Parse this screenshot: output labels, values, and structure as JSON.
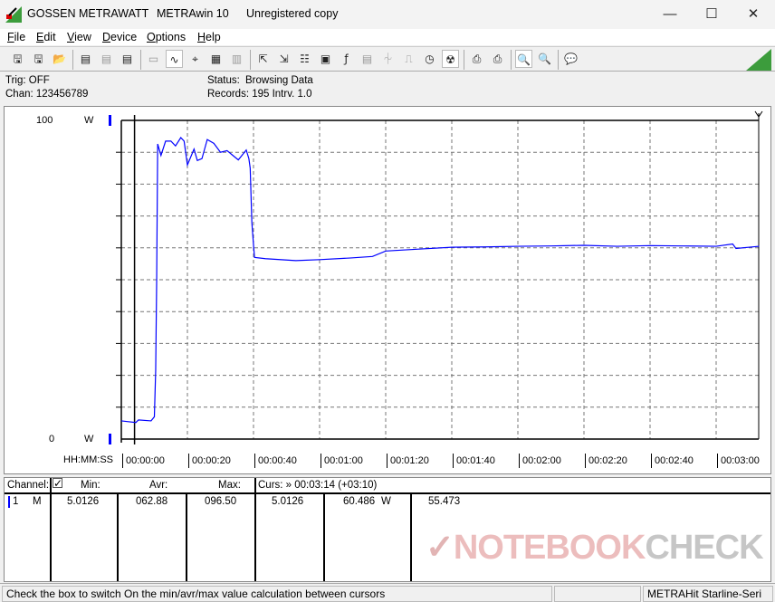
{
  "titlebar": {
    "brand": "GOSSEN METRAWATT",
    "app": "METRAwin 10",
    "license": "Unregistered copy"
  },
  "menu": [
    "File",
    "Edit",
    "View",
    "Device",
    "Options",
    "Help"
  ],
  "toolbar": [
    {
      "icon": "save-as-icon",
      "g": "🖫"
    },
    {
      "icon": "save-icon",
      "g": "🖫"
    },
    {
      "icon": "open-folder-icon",
      "g": "📂"
    },
    {
      "sep": true
    },
    {
      "icon": "device-read-icon",
      "g": "▤"
    },
    {
      "icon": "device-transfer-icon",
      "g": "▤",
      "dis": true
    },
    {
      "icon": "device-memory-icon",
      "g": "▤"
    },
    {
      "sep": true
    },
    {
      "icon": "display-icon",
      "g": "▭",
      "dis": true
    },
    {
      "icon": "waveform-view-icon",
      "g": "∿",
      "on": true
    },
    {
      "icon": "crosshair-icon",
      "g": "⌖"
    },
    {
      "icon": "table-view-icon",
      "g": "▦"
    },
    {
      "icon": "histogram-icon",
      "g": "▥",
      "dis": true
    },
    {
      "sep": true
    },
    {
      "icon": "export-icon",
      "g": "⇱"
    },
    {
      "icon": "import-icon",
      "g": "⇲"
    },
    {
      "icon": "data-list-icon",
      "g": "☷"
    },
    {
      "icon": "monitor-icon",
      "g": "▣"
    },
    {
      "icon": "function-icon",
      "g": "ƒ"
    },
    {
      "icon": "device-settings-icon",
      "g": "▤",
      "dis": true
    },
    {
      "icon": "signal-icon",
      "g": "⏆",
      "dis": true
    },
    {
      "icon": "pulse-icon",
      "g": "⎍",
      "dis": true
    },
    {
      "icon": "clock-icon",
      "g": "◷"
    },
    {
      "icon": "trigger-icon",
      "g": "☢",
      "on": true
    },
    {
      "sep": true
    },
    {
      "icon": "print-preview-icon",
      "g": "⎙"
    },
    {
      "icon": "print-icon",
      "g": "⎙"
    },
    {
      "sep": true
    },
    {
      "icon": "zoom-waveform-icon",
      "g": "🔍",
      "on": true
    },
    {
      "icon": "zoom-icon",
      "g": "🔍"
    },
    {
      "sep": true
    },
    {
      "icon": "comment-icon",
      "g": "💬"
    }
  ],
  "info": {
    "trig": "Trig: OFF",
    "chan": "Chan:  123456789",
    "status_label": "Status:",
    "status": "Browsing Data",
    "records": "Records: 195  Intrv. 1.0"
  },
  "chart_data": {
    "type": "line",
    "ylim": [
      0,
      100
    ],
    "y_tick_labels": [
      "100",
      "0"
    ],
    "y_unit": "W",
    "xlabel": "HH:MM:SS",
    "x_tick_labels": [
      "00:00:00",
      "00:00:20",
      "00:00:40",
      "00:01:00",
      "00:01:20",
      "00:01:40",
      "00:02:00",
      "00:02:20",
      "00:02:40",
      "00:03:00"
    ],
    "xlim_seconds": [
      0,
      193
    ],
    "grid": true,
    "line_color": "#0000ff",
    "cursor_seconds": 4,
    "series": [
      {
        "x": [
          0,
          4.4,
          5.2,
          9,
          10,
          10.4,
          10.7,
          11,
          12,
          13.4,
          15,
          16.4,
          18,
          19,
          20,
          22,
          23,
          24.4,
          26,
          28,
          30,
          32,
          35.4,
          37.8,
          38.6,
          39,
          39.5,
          40,
          40.3,
          43.6,
          52.8,
          60,
          69,
          76,
          80,
          90,
          100,
          110,
          120,
          130,
          140,
          150,
          160,
          170,
          180,
          185,
          186,
          193
        ],
        "y": [
          5.7,
          5.2,
          6,
          5.7,
          7,
          21.6,
          50,
          92.6,
          89,
          93.5,
          93.5,
          92,
          94.6,
          93.5,
          86,
          91,
          87.4,
          88,
          94,
          92.8,
          90,
          90.5,
          87.6,
          90.7,
          88,
          85,
          68,
          61,
          57,
          56.6,
          56,
          56.3,
          56.8,
          57.3,
          59,
          59.6,
          60.2,
          60.3,
          60.5,
          60.6,
          60.8,
          60.5,
          60.7,
          60.6,
          60.5,
          61.2,
          59.8,
          60.5
        ]
      }
    ]
  },
  "table": {
    "headers": {
      "channel": "Channel:",
      "min": "Min:",
      "avr": "Avr:",
      "max": "Max:",
      "curs": "Curs: » 00:03:14 (+03:10)"
    },
    "checkbox_checked": true,
    "row": {
      "num": "1",
      "mode": "M",
      "min": "5.0126",
      "avr": "062.88",
      "max": "096.50",
      "c1": "5.0126",
      "c2": "60.486",
      "unit": "W",
      "c3": "55.473"
    }
  },
  "status": {
    "hint": "Check the box to switch On the min/avr/max value calculation between cursors",
    "device": "METRAHit Starline-Seri"
  },
  "watermark": "NOTEBOOKCHECK"
}
